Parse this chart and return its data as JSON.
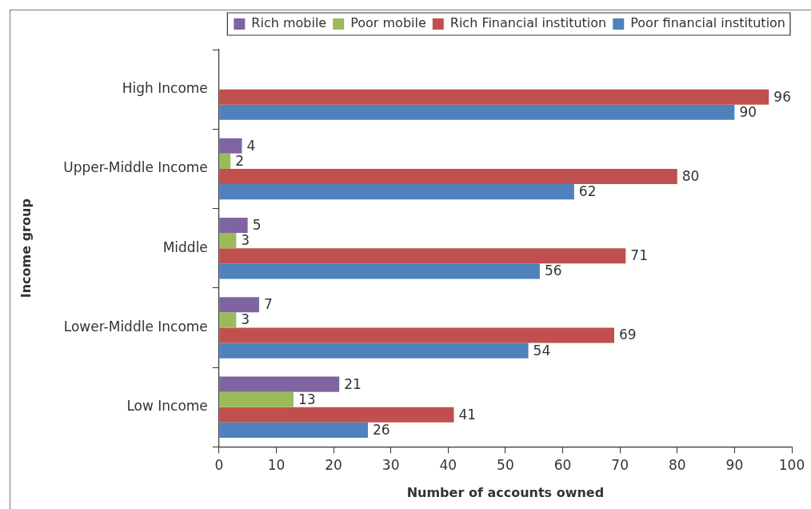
{
  "chart_data": {
    "type": "bar",
    "orientation": "horizontal",
    "xlabel": "Number of accounts owned",
    "ylabel": "Income group",
    "categories": [
      "High Income",
      "Upper-Middle Income",
      "Middle",
      "Lower-Middle Income",
      "Low Income"
    ],
    "series": [
      {
        "name": "Rich mobile",
        "color": "#8064a2",
        "values": [
          null,
          4,
          5,
          7,
          21
        ]
      },
      {
        "name": "Poor mobile",
        "color": "#9bbb59",
        "values": [
          null,
          2,
          3,
          3,
          13
        ]
      },
      {
        "name": "Rich Financial institution",
        "color": "#c0504d",
        "values": [
          96,
          80,
          71,
          69,
          41
        ]
      },
      {
        "name": "Poor financial institution",
        "color": "#4f81bd",
        "values": [
          90,
          62,
          56,
          54,
          26
        ]
      }
    ],
    "xlim": [
      0,
      100
    ],
    "xticks": [
      0,
      10,
      20,
      30,
      40,
      50,
      60,
      70,
      80,
      90,
      100
    ],
    "grid": false,
    "legend": "top right",
    "data_labels": true
  }
}
